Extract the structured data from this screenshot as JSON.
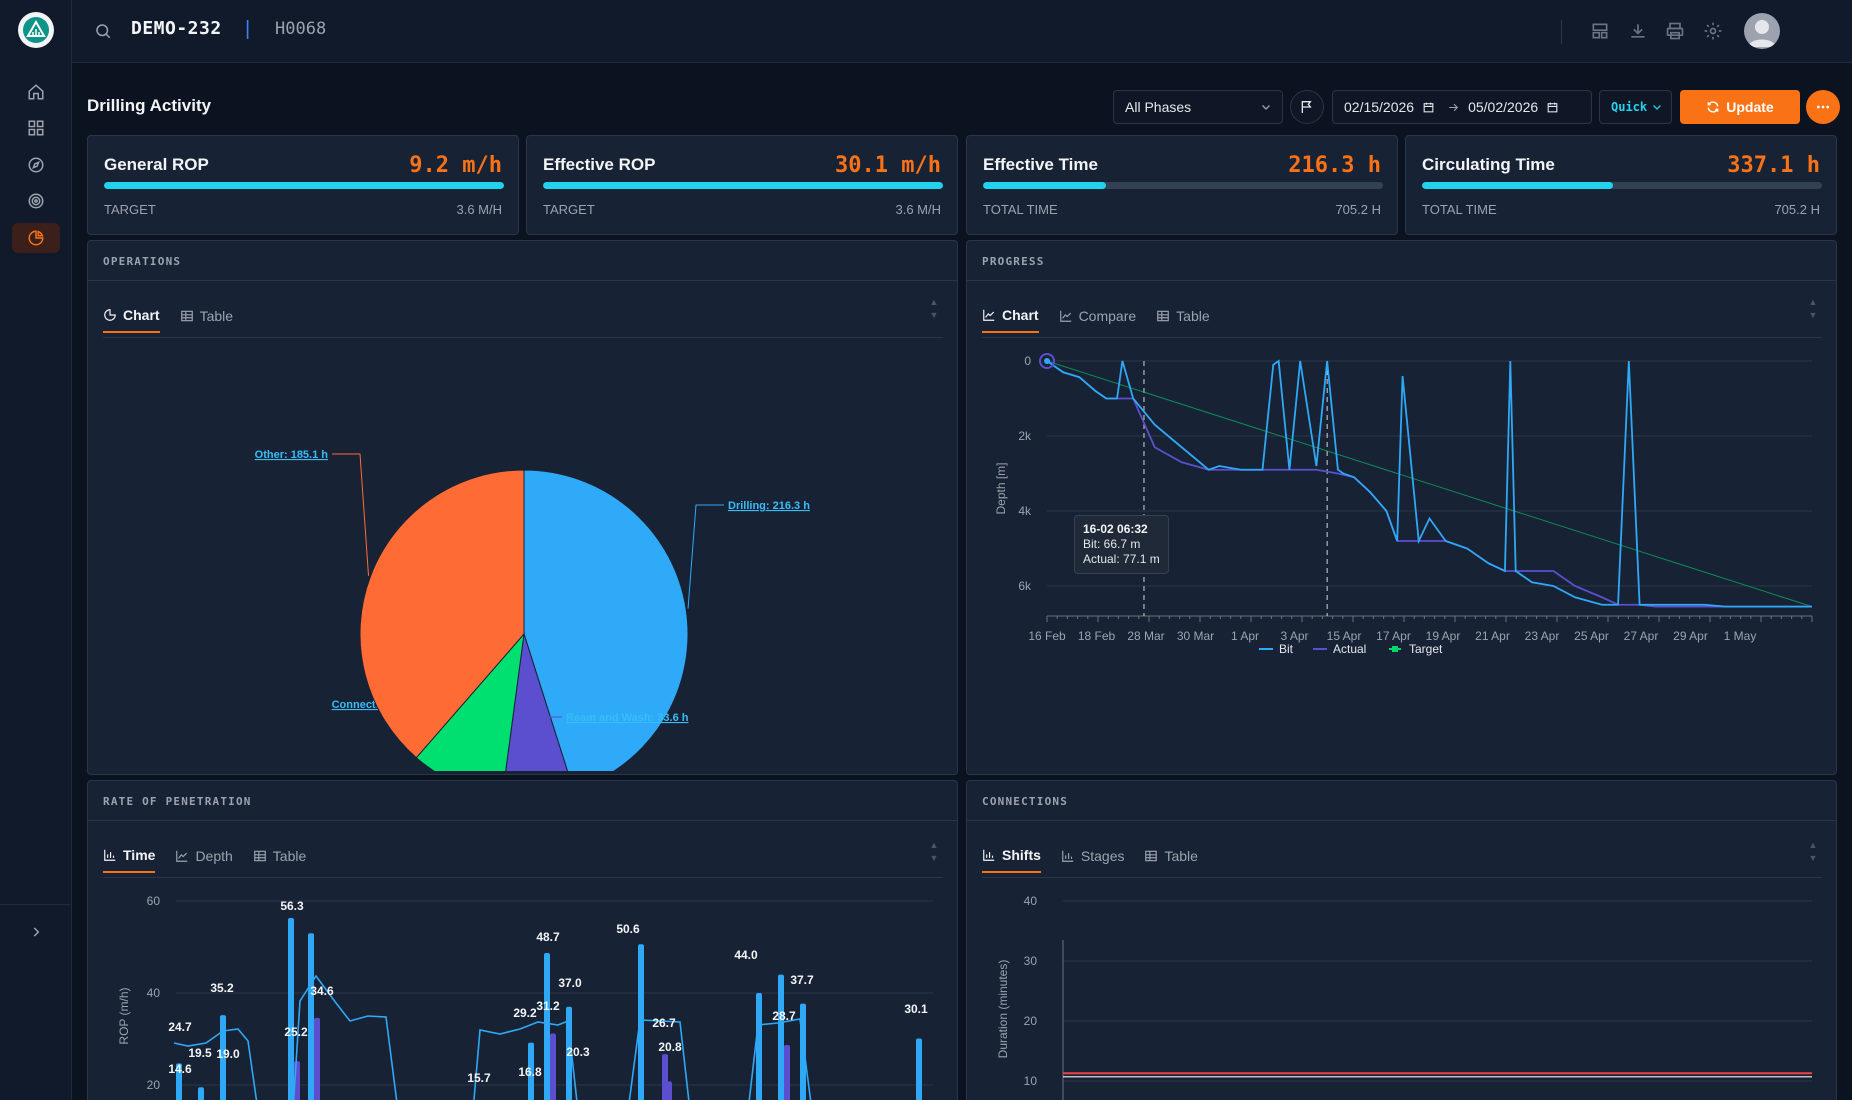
{
  "header": {
    "well": "DEMO-232",
    "separator": "|",
    "rig": "H0068"
  },
  "page": {
    "title": "Drilling Activity"
  },
  "controls": {
    "phase": "All Phases",
    "date_from": "02/15/2026",
    "date_to": "05/02/2026",
    "quick": "Quick",
    "update": "Update"
  },
  "kpis": [
    {
      "title": "General ROP",
      "value": "9.2 m/h",
      "sub_label": "TARGET",
      "sub_value": "3.6 M/H",
      "progress": 1.0
    },
    {
      "title": "Effective ROP",
      "value": "30.1 m/h",
      "sub_label": "TARGET",
      "sub_value": "3.6 M/H",
      "progress": 1.0
    },
    {
      "title": "Effective Time",
      "value": "216.3 h",
      "sub_label": "TOTAL TIME",
      "sub_value": "705.2 H",
      "progress": 0.307
    },
    {
      "title": "Circulating Time",
      "value": "337.1 h",
      "sub_label": "TOTAL TIME",
      "sub_value": "705.2 H",
      "progress": 0.478
    }
  ],
  "operations": {
    "title": "OPERATIONS",
    "tabs": [
      "Chart",
      "Table"
    ]
  },
  "progress": {
    "title": "PROGRESS",
    "tabs": [
      "Chart",
      "Compare",
      "Table"
    ],
    "tooltip": {
      "title": "16-02 06:32",
      "bit": "Bit: 66.7 m",
      "actual": "Actual: 77.1 m"
    }
  },
  "rop": {
    "title": "RATE OF PENETRATION",
    "tabs": [
      "Time",
      "Depth",
      "Table"
    ]
  },
  "connections": {
    "title": "CONNECTIONS",
    "tabs": [
      "Shifts",
      "Stages",
      "Table"
    ]
  },
  "colors": {
    "accent": "#f97316",
    "cyan": "#22d3ee",
    "blue": "#2fa8f5",
    "purple": "#5b4fcf",
    "green": "#00d66b",
    "orange": "#ff6b35"
  },
  "chart_data": [
    {
      "type": "pie",
      "slices": [
        {
          "label": "Drilling: 216.3 h",
          "value": 216.3,
          "color": "#2eaaf8"
        },
        {
          "label": "Ream and Wash: 33.6 h",
          "value": 33.6,
          "color": "#5b4fcf"
        },
        {
          "label": "Connecting: 44.5 h",
          "value": 44.5,
          "color": "#00e070"
        },
        {
          "label": "Other: 185.1 h",
          "value": 185.1,
          "color": "#ff6b35"
        }
      ]
    },
    {
      "type": "line",
      "ylabel": "Depth [m]",
      "yticks": [
        "0",
        "2k",
        "4k",
        "6k"
      ],
      "ylim": [
        0,
        6800
      ],
      "xticks": [
        "16 Feb",
        "18 Feb",
        "28 Mar",
        "30 Mar",
        "1 Apr",
        "3 Apr",
        "15 Apr",
        "17 Apr",
        "19 Apr",
        "21 Apr",
        "23 Apr",
        "25 Apr",
        "27 Apr",
        "29 Apr",
        "1 May"
      ],
      "series": [
        {
          "name": "Bit",
          "color": "#2fa8f5",
          "x": [
            0,
            0.3,
            0.6,
            0.9,
            1.1,
            1.3,
            1.4,
            1.6,
            2.0,
            2.5,
            3.0,
            3.2,
            3.6,
            4.0,
            4.2,
            4.3,
            4.5,
            4.7,
            5.0,
            5.2,
            5.4,
            5.5,
            5.7,
            6.0,
            6.3,
            6.5,
            6.6,
            6.9,
            7.1,
            7.4,
            7.8,
            8.2,
            8.5,
            8.6,
            8.7,
            9.0,
            9.4,
            9.8,
            10.3,
            10.6,
            10.8,
            11.0,
            11.3,
            11.7,
            12.2,
            12.6,
            12.8,
            12.9,
            13.1,
            13.5,
            14.0,
            14.2
          ],
          "y": [
            0,
            300,
            430,
            800,
            1000,
            1000,
            0,
            1000,
            1700,
            2300,
            2900,
            2800,
            2900,
            2900,
            100,
            0,
            2900,
            0,
            2800,
            0,
            2900,
            3000,
            3100,
            3500,
            4000,
            4800,
            400,
            4800,
            4200,
            4800,
            5000,
            5400,
            5600,
            0,
            5600,
            5900,
            6000,
            6300,
            6500,
            6500,
            0,
            6500,
            6500,
            6500,
            6500,
            6550,
            6550,
            6550,
            6550,
            6550,
            6550,
            6550
          ]
        },
        {
          "name": "Actual",
          "color": "#5b4fcf",
          "x": [
            0,
            0.3,
            0.6,
            0.9,
            1.1,
            1.3,
            1.6,
            2.0,
            2.5,
            3.0,
            3.5,
            4.0,
            4.5,
            5.0,
            5.4,
            5.7,
            6.0,
            6.3,
            6.5,
            6.9,
            7.1,
            7.4,
            7.8,
            8.2,
            8.5,
            9.0,
            9.4,
            9.8,
            10.3,
            10.6,
            11.0,
            11.3,
            11.7,
            12.2,
            12.6,
            13.0,
            13.5,
            14.0,
            14.2
          ],
          "y": [
            0,
            300,
            430,
            800,
            1000,
            1000,
            1000,
            2300,
            2700,
            2900,
            2900,
            2900,
            2900,
            2900,
            3000,
            3100,
            3500,
            4000,
            4800,
            4800,
            4800,
            4800,
            5000,
            5400,
            5600,
            5600,
            5600,
            6000,
            6300,
            6500,
            6500,
            6550,
            6550,
            6550,
            6550,
            6550,
            6550,
            6550,
            6550
          ]
        },
        {
          "name": "Target",
          "color": "#00d66b",
          "x": [
            0,
            14.2
          ],
          "y": [
            0,
            6550
          ]
        }
      ],
      "legend": "bottom"
    },
    {
      "type": "bar",
      "ylabel": "ROP (m/h)",
      "yticks": [
        "60",
        "40",
        "20"
      ],
      "ylim": [
        0,
        60
      ],
      "data_labels": [
        "24.7",
        "14.6",
        "19.5",
        "35.2",
        "19.0",
        "56.3",
        "25.2",
        "34.6",
        "15.7",
        "29.2",
        "16.8",
        "31.2",
        "48.7",
        "37.0",
        "20.3",
        "50.6",
        "26.7",
        "20.8",
        "44.0",
        "28.7",
        "37.7",
        "30.1"
      ]
    },
    {
      "type": "line",
      "ylabel": "Duration (minutes)",
      "yticks": [
        "40",
        "30",
        "20",
        "10"
      ],
      "ylim": [
        0,
        40
      ]
    }
  ]
}
